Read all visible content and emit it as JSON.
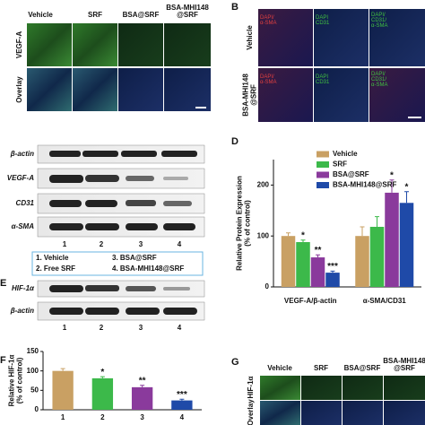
{
  "panels": {
    "A": {
      "column_labels": [
        "Vehicle",
        "SRF",
        "BSA@SRF",
        "BSA-MHI148\n@SRF"
      ],
      "row_labels": [
        "VEGF-A",
        "Overlay"
      ]
    },
    "B": {
      "label": "B",
      "row_labels": [
        "Vehicle",
        "BSA-MHI148\n@SRF"
      ],
      "image_labels": [
        "DAPI/\nα-SMA",
        "DAPI\nCD31",
        "DAPI/\nCD31/\nα-SMA"
      ]
    },
    "C": {
      "blot_labels": [
        "β-actin",
        "VEGF-A",
        "CD31",
        "α-SMA"
      ],
      "lanes": [
        "1",
        "2",
        "3",
        "4"
      ],
      "legend": [
        "1. Vehicle",
        "2. Free SRF",
        "3. BSA@SRF",
        "4. BSA-MHI148@SRF"
      ]
    },
    "E": {
      "label": "E",
      "blot_labels": [
        "HIF-1α",
        "β-actin"
      ],
      "lanes": [
        "1",
        "2",
        "3",
        "4"
      ]
    },
    "G": {
      "label": "G",
      "column_labels": [
        "Vehicle",
        "SRF",
        "BSA@SRF",
        "BSA-MHI148\n@SRF"
      ],
      "row_labels": [
        "HIF-1α",
        "Overlay"
      ]
    }
  },
  "chart_data": [
    {
      "type": "bar",
      "label": "D",
      "y_label": "Relative Protein Expression\n(% of control)",
      "categories": [
        "VEGF-A/β-actin",
        "α-SMA/CD31"
      ],
      "series": [
        {
          "name": "Vehicle",
          "color": "#c9a063",
          "values": [
            100,
            100
          ],
          "errors": [
            6,
            18
          ],
          "significance": [
            null,
            null
          ]
        },
        {
          "name": "SRF",
          "color": "#3cb94a",
          "values": [
            88,
            118
          ],
          "errors": [
            4,
            20
          ],
          "significance": [
            "*",
            null
          ]
        },
        {
          "name": "BSA@SRF",
          "color": "#8a3a9c",
          "values": [
            58,
            185
          ],
          "errors": [
            5,
            25
          ],
          "significance": [
            "**",
            "*"
          ]
        },
        {
          "name": "BSA-MHI148@SRF",
          "color": "#1f4aa8",
          "values": [
            28,
            165
          ],
          "errors": [
            3,
            22
          ],
          "significance": [
            "***",
            "*"
          ]
        }
      ],
      "ylim": [
        0,
        250
      ],
      "yticks": [
        0,
        100,
        200
      ],
      "legend": "top-right"
    },
    {
      "type": "bar",
      "label": "F",
      "y_label": "Relative HIF-1α\n(% of control)",
      "categories": [
        "1",
        "2",
        "3",
        "4"
      ],
      "values": [
        100,
        81,
        58,
        24
      ],
      "colors": [
        "#c9a063",
        "#3cb94a",
        "#8a3a9c",
        "#1f4aa8"
      ],
      "errors": [
        6,
        4,
        5,
        3
      ],
      "significance": [
        null,
        "*",
        "**",
        "***"
      ],
      "ylim": [
        0,
        150
      ],
      "yticks": [
        0,
        50,
        100,
        150
      ]
    }
  ]
}
